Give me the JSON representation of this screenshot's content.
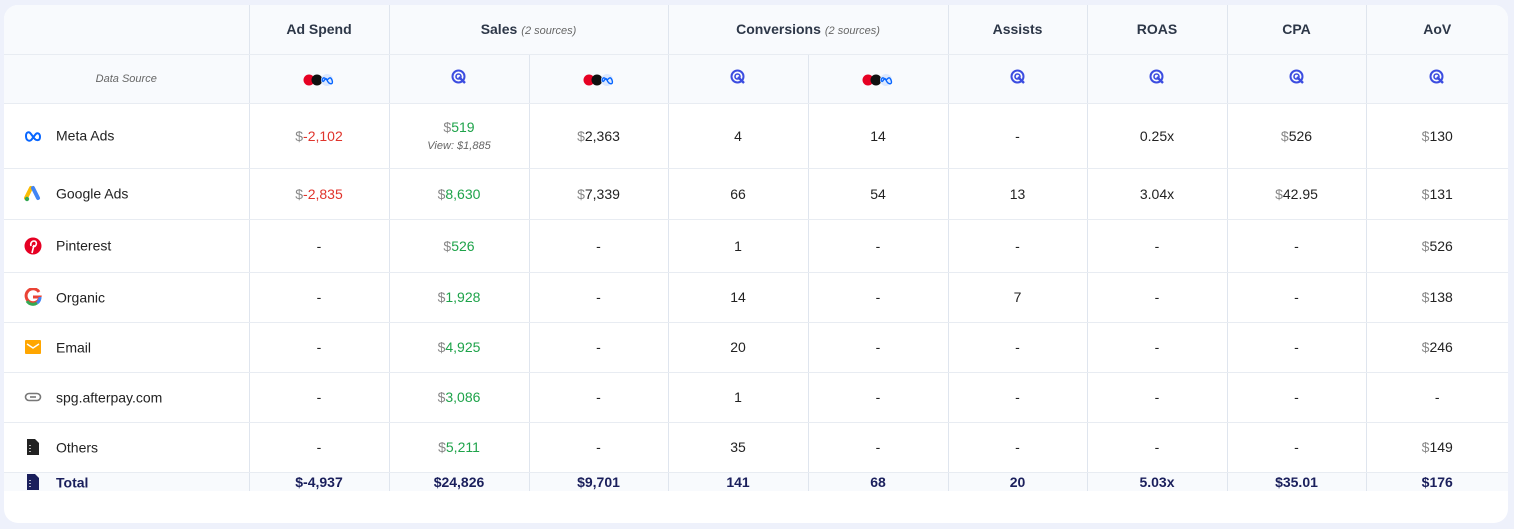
{
  "headers": {
    "ad_spend": "Ad Spend",
    "sales": "Sales",
    "sales_sub": "(2 sources)",
    "conversions": "Conversions",
    "conversions_sub": "(2 sources)",
    "assists": "Assists",
    "roas": "ROAS",
    "cpa": "CPA",
    "aov": "AoV"
  },
  "data_source_label": "Data Source",
  "currency": "$",
  "rows": [
    {
      "name": "Meta Ads",
      "icon": "meta-icon",
      "ad_spend": "-2,102",
      "sales_a": "519",
      "sales_view": "View: $1,885",
      "sales_b": "2,363",
      "conv_a": "4",
      "conv_b": "14",
      "assists": "-",
      "roas": "0.25x",
      "cpa": "526",
      "aov": "130"
    },
    {
      "name": "Google Ads",
      "icon": "google-ads-icon",
      "ad_spend": "-2,835",
      "sales_a": "8,630",
      "sales_b": "7,339",
      "conv_a": "66",
      "conv_b": "54",
      "assists": "13",
      "roas": "3.04x",
      "cpa": "42.95",
      "aov": "131"
    },
    {
      "name": "Pinterest",
      "icon": "pinterest-icon",
      "ad_spend": "-",
      "sales_a": "526",
      "sales_b": "-",
      "conv_a": "1",
      "conv_b": "-",
      "assists": "-",
      "roas": "-",
      "cpa": "-",
      "aov": "526"
    },
    {
      "name": "Organic",
      "icon": "google-icon",
      "ad_spend": "-",
      "sales_a": "1,928",
      "sales_b": "-",
      "conv_a": "14",
      "conv_b": "-",
      "assists": "7",
      "roas": "-",
      "cpa": "-",
      "aov": "138"
    },
    {
      "name": "Email",
      "icon": "email-icon",
      "ad_spend": "-",
      "sales_a": "4,925",
      "sales_b": "-",
      "conv_a": "20",
      "conv_b": "-",
      "assists": "-",
      "roas": "-",
      "cpa": "-",
      "aov": "246"
    },
    {
      "name": "spg.afterpay.com",
      "icon": "link-icon",
      "ad_spend": "-",
      "sales_a": "3,086",
      "sales_b": "-",
      "conv_a": "1",
      "conv_b": "-",
      "assists": "-",
      "roas": "-",
      "cpa": "-",
      "aov": "-"
    },
    {
      "name": "Others",
      "icon": "document-icon",
      "ad_spend": "-",
      "sales_a": "5,211",
      "sales_b": "-",
      "conv_a": "35",
      "conv_b": "-",
      "assists": "-",
      "roas": "-",
      "cpa": "-",
      "aov": "149"
    }
  ],
  "total": {
    "name": "Total",
    "ad_spend": "$-4,937",
    "sales_a": "$24,826",
    "sales_b": "$9,701",
    "conv_a": "141",
    "conv_b": "68",
    "assists": "20",
    "roas": "5.03x",
    "cpa": "$35.01",
    "aov": "$176"
  },
  "colors": {
    "negative": "#e0342c",
    "positive": "#1ea34a",
    "total": "#1a1f5c",
    "accent": "#3b4ce0"
  }
}
